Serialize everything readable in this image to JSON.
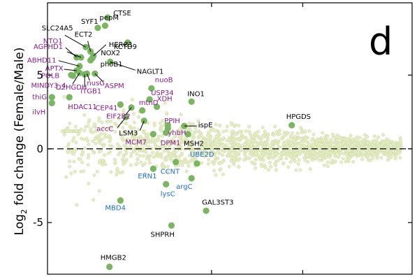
{
  "chart_data": {
    "type": "scatter",
    "panel_letter": "d",
    "ylabel_prefix": "Log",
    "ylabel_sub": "2",
    "ylabel_suffix": " fold change (Female/Male)",
    "xlabel": "",
    "ylim": [
      -8.5,
      9.9
    ],
    "y_ticks": [
      {
        "v": 5,
        "label": "5"
      },
      {
        "v": 0,
        "label": "0"
      },
      {
        "v": -5,
        "label": "-5"
      }
    ],
    "x_tick_fracs": [
      0.45,
      0.7
    ],
    "colors": {
      "highlight": "#7ab661",
      "background": "#e6ecc7",
      "background_edge": "#cdd99e",
      "black": "#000000",
      "purple": "#8a1a8a",
      "blue": "#1f6fcf",
      "line": "#000000"
    },
    "genes": [
      {
        "name": "pepM",
        "x": 0.158,
        "y": 8.35,
        "group": "black"
      },
      {
        "name": "CTSE",
        "x": 0.165,
        "y": 8.9,
        "group": "black"
      },
      {
        "name": "SYF1",
        "x": 0.138,
        "y": 8.2,
        "group": "black"
      },
      {
        "name": "SLC24A5",
        "x": 0.105,
        "y": 6.9,
        "group": "black"
      },
      {
        "name": "ECT2",
        "x": 0.118,
        "y": 6.6,
        "group": "black"
      },
      {
        "name": "NOX2",
        "x": 0.123,
        "y": 6.15,
        "group": "black"
      },
      {
        "name": "HERC3",
        "x": 0.126,
        "y": 6.3,
        "group": "black"
      },
      {
        "name": "KCTD9",
        "x": 0.22,
        "y": 7.2,
        "group": "black"
      },
      {
        "name": "phoB1",
        "x": 0.118,
        "y": 6.0,
        "group": "black"
      },
      {
        "name": "NAGLT1",
        "x": 0.172,
        "y": 5.9,
        "group": "black"
      },
      {
        "name": "NTO1",
        "x": 0.08,
        "y": 6.2,
        "group": "purple"
      },
      {
        "name": "AGPHD1",
        "x": 0.092,
        "y": 6.2,
        "group": "purple"
      },
      {
        "name": "ABHD11",
        "x": 0.088,
        "y": 5.6,
        "group": "purple"
      },
      {
        "name": "APTX",
        "x": 0.08,
        "y": 5.3,
        "group": "purple"
      },
      {
        "name": "POLB",
        "x": 0.065,
        "y": 5.0,
        "group": "purple"
      },
      {
        "name": "MINDY3_4",
        "x": 0.07,
        "y": 4.95,
        "group": "purple"
      },
      {
        "name": "nusG",
        "x": 0.108,
        "y": 5.1,
        "group": "purple"
      },
      {
        "name": "ASPM",
        "x": 0.13,
        "y": 5.1,
        "group": "purple"
      },
      {
        "name": "D2HGDH",
        "x": 0.088,
        "y": 5.15,
        "group": "purple"
      },
      {
        "name": "ITGB1",
        "x": 0.102,
        "y": 5.05,
        "group": "purple"
      },
      {
        "name": "thiG",
        "x": 0.012,
        "y": 3.5,
        "group": "purple"
      },
      {
        "name": "ilvH",
        "x": 0.012,
        "y": 3.1,
        "group": "purple"
      },
      {
        "name": "HDAC11",
        "x": 0.06,
        "y": 3.5,
        "group": "purple"
      },
      {
        "name": "CEP41",
        "x": 0.2,
        "y": 3.0,
        "group": "purple"
      },
      {
        "name": "EIF2B2",
        "x": 0.23,
        "y": 2.8,
        "group": "purple"
      },
      {
        "name": "accC",
        "x": 0.215,
        "y": 2.15,
        "group": "purple"
      },
      {
        "name": "nuoB",
        "x": 0.285,
        "y": 4.1,
        "group": "purple"
      },
      {
        "name": "USP34",
        "x": 0.28,
        "y": 3.35,
        "group": "purple"
      },
      {
        "name": "mtnD",
        "x": 0.26,
        "y": 2.6,
        "group": "purple"
      },
      {
        "name": "XDH",
        "x": 0.3,
        "y": 2.85,
        "group": "purple"
      },
      {
        "name": "PPIH",
        "x": 0.33,
        "y": 1.6,
        "group": "purple"
      },
      {
        "name": "yhbH",
        "x": 0.33,
        "y": 1.4,
        "group": "purple"
      },
      {
        "name": "MCM7",
        "x": 0.29,
        "y": 1.0,
        "group": "purple"
      },
      {
        "name": "DPM1",
        "x": 0.325,
        "y": 1.1,
        "group": "purple"
      },
      {
        "name": "LSM3",
        "x": 0.265,
        "y": 1.9,
        "group": "black"
      },
      {
        "name": "INO1",
        "x": 0.395,
        "y": 3.2,
        "group": "black"
      },
      {
        "name": "ispE",
        "x": 0.375,
        "y": 1.55,
        "group": "black"
      },
      {
        "name": "MSH2",
        "x": 0.385,
        "y": 1.0,
        "group": "black"
      },
      {
        "name": "HPGDS",
        "x": 0.67,
        "y": 1.6,
        "group": "black"
      },
      {
        "name": "UBE2D",
        "x": 0.41,
        "y": -1.0,
        "group": "blue"
      },
      {
        "name": "CCNT",
        "x": 0.352,
        "y": -0.9,
        "group": "blue"
      },
      {
        "name": "ERN1",
        "x": 0.29,
        "y": -1.35,
        "group": "blue"
      },
      {
        "name": "lysC",
        "x": 0.325,
        "y": -2.4,
        "group": "blue"
      },
      {
        "name": "argC",
        "x": 0.395,
        "y": -2.0,
        "group": "blue"
      },
      {
        "name": "MBD4",
        "x": 0.2,
        "y": -3.5,
        "group": "blue"
      },
      {
        "name": "GAL3ST3",
        "x": 0.435,
        "y": -4.2,
        "group": "black"
      },
      {
        "name": "SHPRH",
        "x": 0.34,
        "y": -5.2,
        "group": "black"
      },
      {
        "name": "HMGB2",
        "x": 0.17,
        "y": -8.0,
        "group": "black"
      }
    ]
  }
}
